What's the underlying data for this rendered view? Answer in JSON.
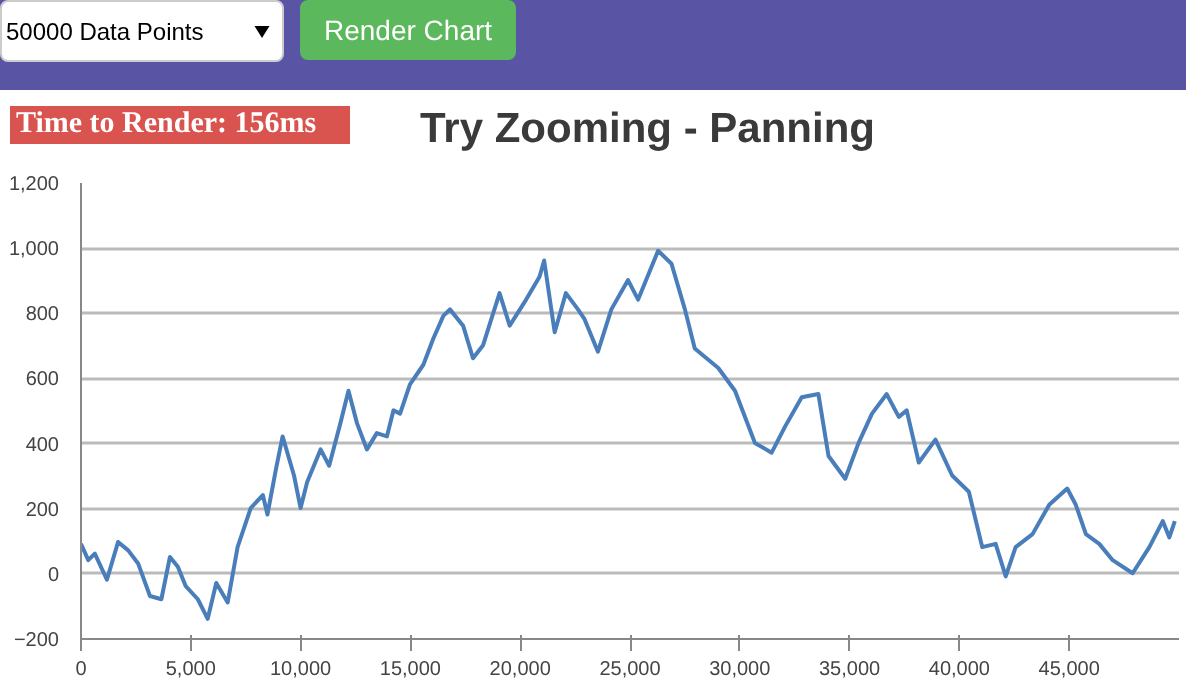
{
  "chart_data": {
    "type": "line",
    "title": "Try Zooming - Panning",
    "annotations": [
      "50000 Data Points",
      "Render Chart",
      "Time to Render: 156ms"
    ],
    "x": [
      0,
      330,
      630,
      1180,
      1690,
      2150,
      2600,
      3140,
      3660,
      4050,
      4410,
      4770,
      5320,
      5770,
      6160,
      6680,
      7130,
      7730,
      8280,
      8490,
      8880,
      9180,
      9700,
      10000,
      10300,
      10910,
      11300,
      11810,
      12180,
      12570,
      13020,
      13470,
      13930,
      14230,
      14530,
      14980,
      15590,
      16040,
      16500,
      16800,
      17400,
      17850,
      18310,
      19060,
      19520,
      20270,
      20880,
      21090,
      21570,
      22080,
      22630,
      22930,
      23540,
      24150,
      24910,
      25370,
      26280,
      26890,
      27500,
      27950,
      29020,
      29780,
      30690,
      31450,
      32060,
      32820,
      33580,
      34040,
      34800,
      35410,
      36020,
      36690,
      37240,
      37600,
      38150,
      38910,
      39670,
      40430,
      41040,
      41650,
      42110,
      42560,
      43330,
      44090,
      44910,
      45300,
      45760,
      46370,
      46980,
      47890,
      48650,
      49260,
      49560,
      49810
    ],
    "series": [
      {
        "color": "#4a7ebb",
        "values": [
          92,
          42,
          62,
          -18,
          98,
          72,
          32,
          -68,
          -78,
          52,
          22,
          -38,
          -78,
          -138,
          -28,
          -88,
          82,
          202,
          242,
          182,
          322,
          422,
          302,
          202,
          282,
          382,
          332,
          462,
          562,
          462,
          382,
          432,
          422,
          502,
          492,
          582,
          642,
          722,
          792,
          812,
          762,
          662,
          702,
          862,
          762,
          842,
          912,
          962,
          742,
          862,
          812,
          782,
          682,
          812,
          902,
          842,
          992,
          952,
          812,
          692,
          632,
          562,
          402,
          372,
          452,
          542,
          552,
          362,
          292,
          402,
          492,
          552,
          482,
          502,
          342,
          412,
          302,
          252,
          82,
          92,
          -8,
          82,
          122,
          212,
          262,
          212,
          122,
          92,
          42,
          2,
          82,
          162,
          112,
          162
        ]
      }
    ],
    "xlim": [
      0,
      50000
    ],
    "ylim": [
      -200,
      1200
    ],
    "xticks": [
      0,
      {
        "value": 5000,
        "label": "5,000"
      },
      {
        "value": 10000,
        "label": "10,000"
      },
      {
        "value": 15000,
        "label": "15,000"
      },
      {
        "value": 20000,
        "label": "20,000"
      },
      {
        "value": 25000,
        "label": "25,000"
      },
      {
        "value": 30000,
        "label": "30,000"
      },
      {
        "value": 35000,
        "label": "35,000"
      },
      {
        "value": 40000,
        "label": "40,000"
      },
      {
        "value": 45000,
        "label": "45,000"
      }
    ],
    "yticks": [
      -200,
      0,
      200,
      400,
      600,
      800,
      {
        "value": 1000,
        "label": "1,000"
      },
      {
        "value": 1200,
        "label": "1,200"
      }
    ],
    "grid": "y",
    "marker": "none",
    "line_style": "solid"
  }
}
